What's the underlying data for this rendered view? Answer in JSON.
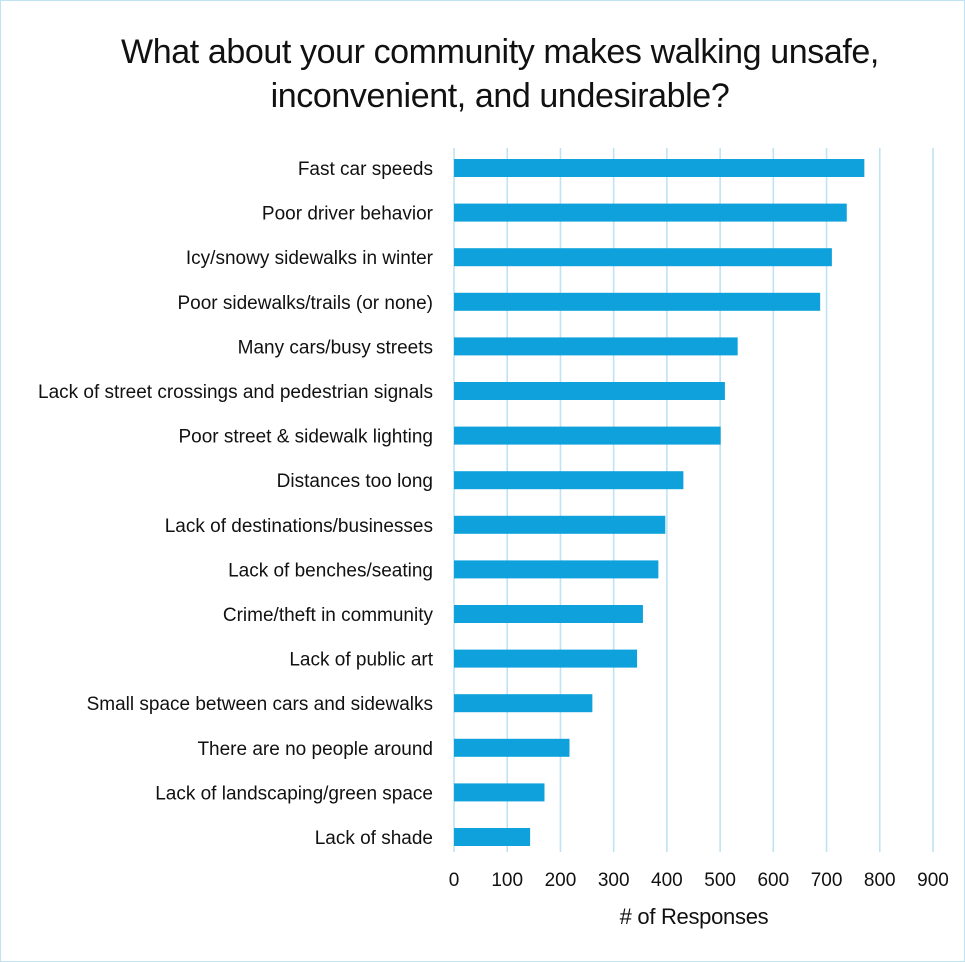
{
  "chart_data": {
    "type": "bar",
    "orientation": "horizontal",
    "title": "What about your community makes walking unsafe, inconvenient, and undesirable?",
    "xlabel": "# of Responses",
    "ylabel": "",
    "xlim": [
      0,
      900
    ],
    "x_ticks": [
      "0",
      "100",
      "200",
      "300",
      "400",
      "500",
      "600",
      "700",
      "800",
      "900"
    ],
    "grid": "vertical",
    "bar_color": "#0ea1dc",
    "grid_color": "#bfe3f2",
    "categories": [
      "Fast car speeds",
      "Poor driver behavior",
      "Icy/snowy sidewalks in winter",
      "Poor sidewalks/trails (or none)",
      "Many cars/busy streets",
      "Lack of street crossings and pedestrian signals",
      "Poor street & sidewalk lighting",
      "Distances too long",
      "Lack of destinations/businesses",
      "Lack of benches/seating",
      "Crime/theft in community",
      "Lack of public art",
      "Small space between cars and sidewalks",
      "There are no people around",
      "Lack of landscaping/green space",
      "Lack of shade"
    ],
    "values": [
      771,
      738,
      710,
      688,
      533,
      509,
      501,
      431,
      397,
      384,
      355,
      344,
      260,
      217,
      170,
      143
    ]
  }
}
